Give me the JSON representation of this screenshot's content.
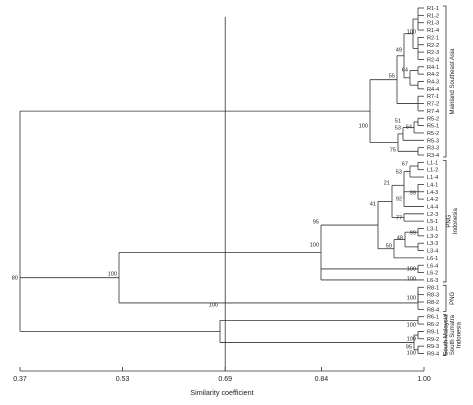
{
  "dendrogram": {
    "axis": {
      "title": "Similarity coefficient",
      "ticks": [
        "0.37",
        "0.53",
        "0.69",
        "0.84",
        "1.00"
      ],
      "min": 0.37,
      "max": 1.0
    },
    "cutoff_value": 0.69,
    "leaves": [
      "R1-1",
      "R1-2",
      "R1-3",
      "R1-4",
      "R2-1",
      "R2-2",
      "R2-3",
      "R2-4",
      "R4-1",
      "R4-2",
      "R4-3",
      "R4-4",
      "R7-1",
      "R7-2",
      "R7-4",
      "R5-2",
      "R5-1",
      "R5-2",
      "R5-3",
      "R3-3",
      "R3-4",
      "L1-1",
      "L1-2",
      "L1-4",
      "L4-1",
      "L4-3",
      "L4-2",
      "L4-4",
      "L2-3",
      "L5-1",
      "L3-1",
      "L3-2",
      "L3-3",
      "L3-4",
      "L6-1",
      "L6-4",
      "L6-2",
      "L6-3",
      "R8-1",
      "R8-3",
      "R8-2",
      "R8-4",
      "R6-1",
      "R6-2",
      "R9-1",
      "R9-2",
      "R9-3",
      "R9-4"
    ],
    "node_labels": [
      "100",
      "49",
      "64",
      "55",
      "51",
      "64",
      "53",
      "75",
      "100",
      "67",
      "53",
      "21",
      "99",
      "92",
      "41",
      "77",
      "95",
      "99",
      "48",
      "50",
      "100",
      "100",
      "100",
      "100",
      "80",
      "100",
      "100",
      "100",
      "100",
      "95",
      "100"
    ],
    "groups": [
      {
        "label": "Mainland Southeast Asia"
      },
      {
        "label": "PNG / Indonesia"
      },
      {
        "label": "PNG"
      },
      {
        "label": "South Malaysia / South Sumatra / Indonesia"
      }
    ]
  }
}
